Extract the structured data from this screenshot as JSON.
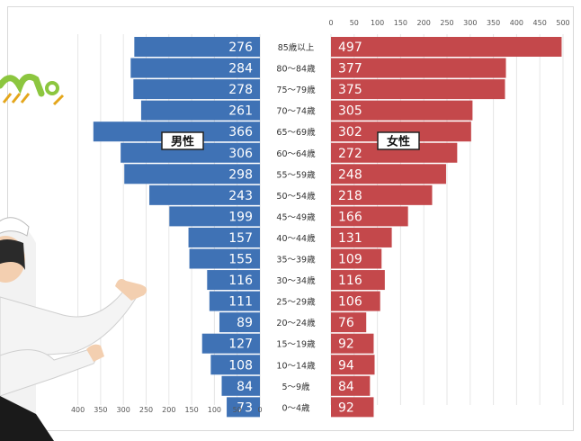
{
  "chart_data": {
    "type": "bar",
    "subtype": "population-pyramid",
    "categories": [
      "85歳以上",
      "80～84歳",
      "75～79歳",
      "70～74歳",
      "65～69歳",
      "60～64歳",
      "55～59歳",
      "50～54歳",
      "45～49歳",
      "40～44歳",
      "35～39歳",
      "30～34歳",
      "25～29歳",
      "20～24歳",
      "15～19歳",
      "10～14歳",
      "5～9歳",
      "0～4歳"
    ],
    "series": [
      {
        "name": "男性",
        "color": "#3f72b5",
        "values": [
          276,
          284,
          278,
          261,
          366,
          306,
          298,
          243,
          199,
          157,
          155,
          116,
          111,
          89,
          127,
          108,
          84,
          73
        ]
      },
      {
        "name": "女性",
        "color": "#c4484b",
        "values": [
          497,
          377,
          375,
          305,
          302,
          272,
          248,
          218,
          166,
          131,
          109,
          116,
          106,
          76,
          92,
          94,
          84,
          92
        ]
      }
    ],
    "left_axis": {
      "ticks": [
        400,
        350,
        300,
        250,
        200,
        150,
        100,
        50,
        0
      ],
      "range": [
        0,
        400
      ],
      "reversed": true
    },
    "right_axis": {
      "ticks": [
        0,
        50,
        100,
        150,
        200,
        250,
        300,
        350,
        400,
        450,
        500
      ],
      "range": [
        0,
        500
      ]
    },
    "grid": true,
    "legend_placement": "inside-bars"
  }
}
